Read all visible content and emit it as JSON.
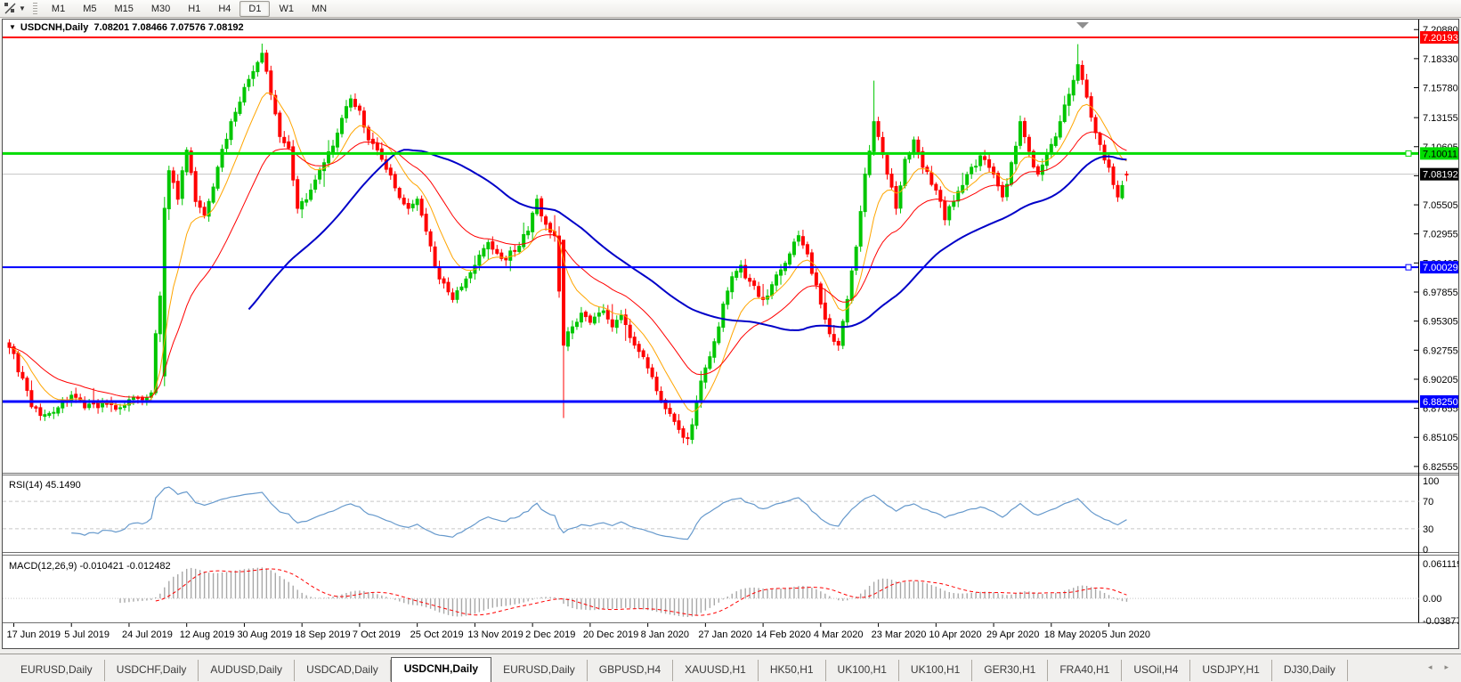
{
  "toolbar": {
    "tool_icon": "trendline-tool",
    "timeframes": [
      "M1",
      "M5",
      "M15",
      "M30",
      "H1",
      "H4",
      "D1",
      "W1",
      "MN"
    ],
    "active_timeframe": "D1"
  },
  "chart_header": {
    "symbol_label": "USDCNH,Daily",
    "ohlc_text": "7.08201 7.08466 7.07576 7.08192"
  },
  "panes": {
    "rsi": {
      "label": "RSI(14) 45.1490",
      "scale": [
        "100",
        "70",
        "30",
        "0"
      ]
    },
    "macd": {
      "label": "MACD(12,26,9) -0.010421 -0.012482",
      "scale": [
        "0.061119",
        "0.00",
        "-0.038777"
      ]
    }
  },
  "tabs": {
    "items": [
      {
        "label": "EURUSD,Daily",
        "active": false
      },
      {
        "label": "USDCHF,Daily",
        "active": false
      },
      {
        "label": "AUDUSD,Daily",
        "active": false
      },
      {
        "label": "USDCAD,Daily",
        "active": false
      },
      {
        "label": "USDCNH,Daily",
        "active": true
      },
      {
        "label": "EURUSD,Daily",
        "active": false
      },
      {
        "label": "GBPUSD,H4",
        "active": false
      },
      {
        "label": "XAUUSD,H1",
        "active": false
      },
      {
        "label": "HK50,H1",
        "active": false
      },
      {
        "label": "UK100,H1",
        "active": false
      },
      {
        "label": "UK100,H1",
        "active": false
      },
      {
        "label": "GER30,H1",
        "active": false
      },
      {
        "label": "FRA40,H1",
        "active": false
      },
      {
        "label": "USOil,H4",
        "active": false
      },
      {
        "label": "USDJPY,H1",
        "active": false
      },
      {
        "label": "DJ30,Daily",
        "active": false
      }
    ],
    "scroll_left_icon": "◂",
    "scroll_right_icon": "▸"
  },
  "chart_data": {
    "type": "candlestick",
    "symbol": "USDCNH",
    "timeframe": "Daily",
    "last_ohlc": {
      "open": 7.08201,
      "high": 7.08466,
      "low": 7.07576,
      "close": 7.08192
    },
    "bar_count": 253,
    "x_labels": [
      "17 Jun 2019",
      "5 Jul 2019",
      "24 Jul 2019",
      "12 Aug 2019",
      "30 Aug 2019",
      "18 Sep 2019",
      "7 Oct 2019",
      "25 Oct 2019",
      "13 Nov 2019",
      "2 Dec 2019",
      "20 Dec 2019",
      "8 Jan 2020",
      "27 Jan 2020",
      "14 Feb 2020",
      "4 Mar 2020",
      "23 Mar 2020",
      "10 Apr 2020",
      "29 Apr 2020",
      "18 May 2020",
      "5 Jun 2020"
    ],
    "x_label_first_bar": 1,
    "x_label_step_bars": 13,
    "price_axis": {
      "min": 6.82,
      "max": 7.216,
      "ticks": [
        "7.20880",
        "7.18330",
        "7.15780",
        "7.13155",
        "7.10605",
        "7.08055",
        "7.05505",
        "7.02955",
        "7.00405",
        "6.97855",
        "6.95305",
        "6.92755",
        "6.90205",
        "6.87655",
        "6.85105",
        "6.82555"
      ]
    },
    "grid": false,
    "hlines": [
      {
        "price": 7.20193,
        "label": "7.20193",
        "color": "#ff0000",
        "width": 2,
        "badge_bg": "#ff0000",
        "badge_fg": "#ffffff",
        "handle": false
      },
      {
        "price": 7.10011,
        "label": "7.10011",
        "color": "#00dc00",
        "width": 3,
        "badge_bg": "#00dc00",
        "badge_fg": "#000000",
        "handle": true
      },
      {
        "price": 7.00029,
        "label": "7.00029",
        "color": "#0000ff",
        "width": 2,
        "badge_bg": "#0000ff",
        "badge_fg": "#ffffff",
        "handle": true
      },
      {
        "price": 6.8825,
        "label": "6.88250",
        "color": "#0000ff",
        "width": 3,
        "badge_bg": "#0000ff",
        "badge_fg": "#ffffff",
        "handle": false
      }
    ],
    "current_price": {
      "price": 7.08192,
      "label": "7.08192",
      "line_color": "#c6c6c6",
      "badge_bg": "#000000",
      "badge_fg": "#ffffff"
    },
    "candle_colors": {
      "up": "#00c600",
      "down": "#ff0000"
    },
    "moving_averages": [
      {
        "period": 10,
        "method": "ema",
        "color": "#ffa500",
        "width": 1
      },
      {
        "period": 25,
        "method": "ema",
        "color": "#ff0000",
        "width": 1
      },
      {
        "period": 55,
        "method": "sma",
        "color": "#0000c8",
        "width": 2
      }
    ],
    "close_anchors": [
      [
        0,
        6.93
      ],
      [
        3,
        6.903
      ],
      [
        5,
        6.878
      ],
      [
        8,
        6.871
      ],
      [
        11,
        6.877
      ],
      [
        14,
        6.888
      ],
      [
        17,
        6.877
      ],
      [
        21,
        6.881
      ],
      [
        25,
        6.877
      ],
      [
        29,
        6.886
      ],
      [
        32,
        6.89
      ],
      [
        33,
        6.942
      ],
      [
        34,
        6.975
      ],
      [
        35,
        7.052
      ],
      [
        36,
        7.085
      ],
      [
        38,
        7.06
      ],
      [
        40,
        7.103
      ],
      [
        42,
        7.058
      ],
      [
        44,
        7.046
      ],
      [
        47,
        7.088
      ],
      [
        50,
        7.128
      ],
      [
        53,
        7.158
      ],
      [
        55,
        7.172
      ],
      [
        57,
        7.188
      ],
      [
        59,
        7.152
      ],
      [
        61,
        7.115
      ],
      [
        63,
        7.105
      ],
      [
        65,
        7.052
      ],
      [
        68,
        7.068
      ],
      [
        71,
        7.092
      ],
      [
        74,
        7.118
      ],
      [
        77,
        7.148
      ],
      [
        79,
        7.138
      ],
      [
        81,
        7.112
      ],
      [
        84,
        7.095
      ],
      [
        87,
        7.07
      ],
      [
        90,
        7.052
      ],
      [
        92,
        7.06
      ],
      [
        94,
        7.032
      ],
      [
        97,
        6.99
      ],
      [
        100,
        6.972
      ],
      [
        103,
        6.99
      ],
      [
        105,
        7.002
      ],
      [
        108,
        7.022
      ],
      [
        111,
        7.008
      ],
      [
        114,
        7.015
      ],
      [
        117,
        7.032
      ],
      [
        119,
        7.06
      ],
      [
        121,
        7.038
      ],
      [
        123,
        7.028
      ],
      [
        125,
        6.932
      ],
      [
        127,
        6.948
      ],
      [
        129,
        6.96
      ],
      [
        131,
        6.952
      ],
      [
        134,
        6.962
      ],
      [
        136,
        6.948
      ],
      [
        138,
        6.958
      ],
      [
        141,
        6.932
      ],
      [
        144,
        6.912
      ],
      [
        146,
        6.892
      ],
      [
        149,
        6.872
      ],
      [
        151,
        6.858
      ],
      [
        153,
        6.85
      ],
      [
        155,
        6.882
      ],
      [
        157,
        6.912
      ],
      [
        159,
        6.935
      ],
      [
        161,
        6.968
      ],
      [
        163,
        6.992
      ],
      [
        165,
        7.002
      ],
      [
        167,
        6.988
      ],
      [
        170,
        6.972
      ],
      [
        172,
        6.985
      ],
      [
        174,
        6.998
      ],
      [
        176,
        7.012
      ],
      [
        178,
        7.028
      ],
      [
        180,
        7.012
      ],
      [
        182,
        6.985
      ],
      [
        183,
        6.968
      ],
      [
        185,
        6.942
      ],
      [
        187,
        6.932
      ],
      [
        189,
        6.972
      ],
      [
        191,
        7.018
      ],
      [
        193,
        7.082
      ],
      [
        195,
        7.128
      ],
      [
        196,
        7.115
      ],
      [
        198,
        7.082
      ],
      [
        200,
        7.052
      ],
      [
        202,
        7.095
      ],
      [
        204,
        7.112
      ],
      [
        206,
        7.088
      ],
      [
        209,
        7.068
      ],
      [
        211,
        7.042
      ],
      [
        213,
        7.058
      ],
      [
        215,
        7.072
      ],
      [
        217,
        7.088
      ],
      [
        219,
        7.098
      ],
      [
        222,
        7.082
      ],
      [
        224,
        7.062
      ],
      [
        226,
        7.092
      ],
      [
        228,
        7.128
      ],
      [
        230,
        7.102
      ],
      [
        232,
        7.082
      ],
      [
        235,
        7.108
      ],
      [
        237,
        7.128
      ],
      [
        239,
        7.152
      ],
      [
        241,
        7.178
      ],
      [
        242,
        7.165
      ],
      [
        244,
        7.132
      ],
      [
        246,
        7.108
      ],
      [
        248,
        7.088
      ],
      [
        250,
        7.062
      ],
      [
        251,
        7.072
      ],
      [
        252,
        7.08192
      ]
    ],
    "bar_overrides": {
      "35": {
        "o": 6.905,
        "l": 6.896,
        "h": 7.062
      },
      "57": {
        "h": 7.1965
      },
      "125": {
        "o": 7.024,
        "l": 6.868
      },
      "195": {
        "h": 7.164
      },
      "241": {
        "h": 7.196
      },
      "252": {
        "o": 7.08201,
        "h": 7.08466,
        "l": 7.07576,
        "c": 7.08192
      }
    },
    "rsi": {
      "period": 14,
      "current": 45.149,
      "levels": [
        70,
        30
      ],
      "range": [
        0,
        100
      ],
      "color": "#6699cc",
      "level_color": "#c8c8c8"
    },
    "macd": {
      "fast": 12,
      "slow": 26,
      "signal": 9,
      "current_macd": -0.010421,
      "current_signal": -0.012482,
      "scale_max": 0.061119,
      "scale_min": -0.038777,
      "hist_color": "#a8a8a8",
      "signal_color": "#ff0000"
    }
  }
}
